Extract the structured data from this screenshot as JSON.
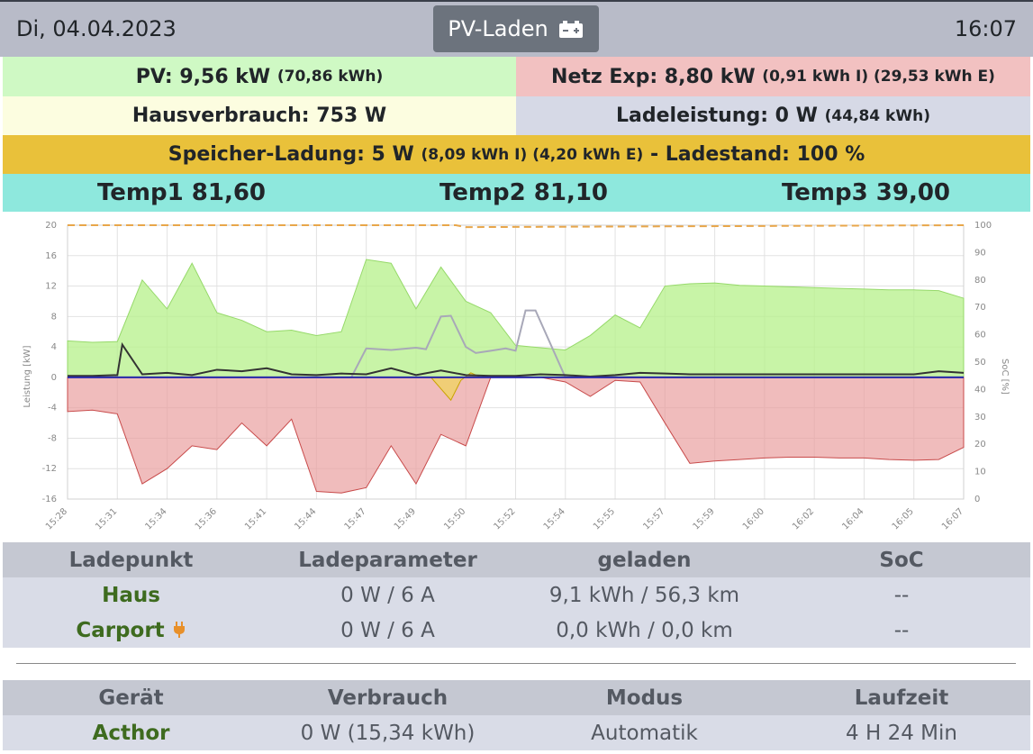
{
  "header": {
    "date": "Di, 04.04.2023",
    "mode_label": "PV-Laden",
    "time": "16:07"
  },
  "pv": {
    "label": "PV: 9,56 kW",
    "detail": "(70,86 kWh)"
  },
  "grid": {
    "label": "Netz Exp: 8,80 kW",
    "detail": "(0,91 kWh I) (29,53 kWh E)"
  },
  "house": {
    "label": "Hausverbrauch: 753 W"
  },
  "charge": {
    "label": "Ladeleistung: 0 W",
    "detail": "(44,84 kWh)"
  },
  "storage": {
    "label": "Speicher-Ladung: 5 W",
    "detail": "(8,09 kWh I) (4,20 kWh E)",
    "soc_label": "- Ladestand: 100 %"
  },
  "temps": {
    "t1": "Temp1 81,60",
    "t2": "Temp2 81,10",
    "t3": "Temp3 39,00"
  },
  "colors": {
    "pv": "#b6f08a",
    "grid": "#e9a0a0",
    "battery": "#f0d264",
    "house": "#333333",
    "soc": "#e8a64a",
    "charge": "#a8a8b8",
    "zero": "#2a2aa8"
  },
  "chart_data": {
    "type": "area",
    "ylabel": "Leistung [kW]",
    "y2label": "SoC [%]",
    "ylim": [
      -16,
      20
    ],
    "y2lim": [
      0,
      100
    ],
    "yticks": [
      "20",
      "16",
      "12",
      "8",
      "4",
      "0",
      "-4",
      "-8",
      "-12",
      "-16"
    ],
    "y2ticks": [
      "100",
      "90",
      "80",
      "70",
      "60",
      "50",
      "40",
      "30",
      "20",
      "10",
      "0"
    ],
    "xticks": [
      "15:28",
      "15:31",
      "15:34",
      "15:36",
      "15:41",
      "15:44",
      "15:47",
      "15:49",
      "15:50",
      "15:52",
      "15:54",
      "15:55",
      "15:57",
      "15:59",
      "16:00",
      "16:02",
      "16:04",
      "16:05",
      "16:07"
    ],
    "grid": true,
    "series": [
      {
        "key": "pv",
        "x": [
          0,
          0.5,
          1,
          1.5,
          2,
          2.5,
          3,
          3.5,
          4,
          4.5,
          5,
          5.5,
          6,
          6.5,
          7,
          7.5,
          8,
          8.5,
          9,
          9.5,
          10,
          10.5,
          11,
          11.5,
          12,
          12.5,
          13,
          13.5,
          14,
          14.5,
          15,
          15.5,
          16,
          16.5,
          17,
          17.5,
          18
        ],
        "values": [
          4.8,
          4.6,
          4.7,
          12.8,
          9,
          15,
          8.5,
          7.5,
          6,
          6.2,
          5.5,
          6,
          15.5,
          15,
          9,
          14.5,
          10,
          8.5,
          4.2,
          3.9,
          3.6,
          5.5,
          8.2,
          6.5,
          12,
          12.3,
          12.4,
          12.1,
          12,
          11.9,
          11.8,
          11.7,
          11.6,
          11.5,
          11.5,
          11.4,
          10.4
        ]
      },
      {
        "key": "grid",
        "x": [
          0,
          0.5,
          1,
          1.5,
          2,
          2.5,
          3,
          3.5,
          4,
          4.5,
          5,
          5.5,
          6,
          6.5,
          7,
          7.5,
          8,
          8.5,
          9,
          9.5,
          10,
          10.5,
          11,
          11.5,
          12,
          12.5,
          13,
          13.5,
          14,
          14.5,
          15,
          15.5,
          16,
          16.5,
          17,
          17.5,
          18
        ],
        "values": [
          -4.5,
          -4.3,
          -4.8,
          -14,
          -12,
          -9,
          -9.5,
          -6,
          -9,
          -5.5,
          -15,
          -15.2,
          -14.5,
          -9,
          -14,
          -7.5,
          -9,
          0,
          0,
          0,
          -0.6,
          -2.5,
          -0.4,
          -0.6,
          -6,
          -11.3,
          -11,
          -10.8,
          -10.6,
          -10.5,
          -10.5,
          -10.6,
          -10.6,
          -10.8,
          -10.9,
          -10.8,
          -9.2
        ]
      },
      {
        "key": "battery",
        "x": [
          7.3,
          7.5,
          7.7,
          7.9,
          8.1,
          8.3
        ],
        "values": [
          0,
          -1.5,
          -3,
          -0.4,
          0.6,
          0
        ]
      },
      {
        "key": "house",
        "x": [
          0,
          0.5,
          1,
          1.1,
          1.5,
          2,
          2.5,
          3,
          3.5,
          4,
          4.5,
          5,
          5.5,
          6,
          6.5,
          7,
          7.5,
          8,
          8.5,
          9,
          9.5,
          10,
          10.5,
          11,
          11.5,
          12,
          12.5,
          13,
          13.5,
          14,
          14.5,
          15,
          15.5,
          16,
          16.5,
          17,
          17.5,
          18
        ],
        "values": [
          0.2,
          0.2,
          0.3,
          4.3,
          0.4,
          0.6,
          0.3,
          1,
          0.8,
          1.2,
          0.4,
          0.3,
          0.5,
          0.4,
          1.2,
          0.3,
          0.9,
          0.3,
          0.2,
          0.2,
          0.4,
          0.3,
          0.1,
          0.3,
          0.6,
          0.5,
          0.4,
          0.4,
          0.4,
          0.4,
          0.4,
          0.4,
          0.4,
          0.4,
          0.4,
          0.4,
          0.8,
          0.6
        ]
      },
      {
        "key": "charge",
        "x": [
          0,
          5.5,
          5.7,
          6,
          6.5,
          7,
          7.2,
          7.5,
          7.7,
          8,
          8.2,
          8.5,
          8.8,
          9,
          9.2,
          9.4,
          10,
          18
        ],
        "values": [
          0,
          0,
          0,
          3.8,
          3.6,
          3.9,
          3.7,
          8,
          8.1,
          4,
          3.2,
          3.5,
          3.8,
          3.5,
          8.8,
          8.8,
          0,
          0
        ]
      },
      {
        "key": "soc",
        "x": [
          0,
          7.8,
          8,
          18
        ],
        "values": [
          100,
          100,
          99.3,
          100
        ]
      }
    ]
  },
  "ladepunkt_table": {
    "headers": [
      "Ladepunkt",
      "Ladeparameter",
      "geladen",
      "SoC"
    ],
    "rows": [
      {
        "name": "Haus",
        "params": "0 W / 6 A",
        "charged": "9,1 kWh / 56,3 km",
        "soc": "--"
      },
      {
        "name": "Carport",
        "params": "0 W / 6 A",
        "charged": "0,0 kWh / 0,0 km",
        "soc": "--"
      }
    ]
  },
  "device_table": {
    "headers": [
      "Gerät",
      "Verbrauch",
      "Modus",
      "Laufzeit"
    ],
    "rows": [
      {
        "name": "Acthor",
        "usage": "0 W (15,34 kWh)",
        "mode": "Automatik",
        "runtime": "4 H 24 Min"
      }
    ]
  }
}
